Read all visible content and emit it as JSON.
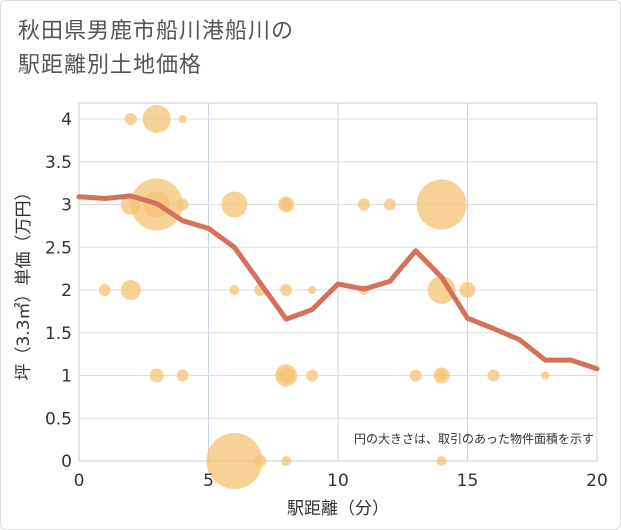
{
  "title_lines": [
    "秋田県男鹿市船川港船川の",
    "駅距離別土地価格"
  ],
  "chart_data": {
    "type": "scatter",
    "title": "秋田県男鹿市船川港船川の駅距離別土地価格",
    "xlabel": "駅距離（分）",
    "ylabel": "坪（3.3㎡）単価（万円）",
    "xlim": [
      0,
      20
    ],
    "ylim": [
      0,
      4.2
    ],
    "x_ticks": [
      0,
      5,
      10,
      15,
      20
    ],
    "x_tick_labels": [
      "0",
      "5",
      "10",
      "15",
      "20"
    ],
    "y_ticks": [
      0,
      0.5,
      1,
      1.5,
      2,
      2.5,
      3,
      3.5,
      4
    ],
    "y_tick_labels": [
      "0",
      "0.5",
      "1",
      "1.5",
      "2",
      "2.5",
      "3",
      "3.5",
      "4"
    ],
    "grid": true,
    "note": "円の大きさは、取引のあった物件面積を示す",
    "bubble_color": "#f5c477",
    "line_color": "#d4705c",
    "bubbles": [
      {
        "x": 2,
        "y": 4,
        "size": 6
      },
      {
        "x": 3,
        "y": 4,
        "size": 14
      },
      {
        "x": 4,
        "y": 4,
        "size": 4
      },
      {
        "x": 2,
        "y": 3,
        "size": 10
      },
      {
        "x": 3,
        "y": 3,
        "size": 26
      },
      {
        "x": 3,
        "y": 3,
        "size": 13
      },
      {
        "x": 4,
        "y": 3,
        "size": 6
      },
      {
        "x": 6,
        "y": 3,
        "size": 13
      },
      {
        "x": 8,
        "y": 3,
        "size": 8
      },
      {
        "x": 8,
        "y": 3,
        "size": 6
      },
      {
        "x": 11,
        "y": 3,
        "size": 6
      },
      {
        "x": 12,
        "y": 3,
        "size": 6
      },
      {
        "x": 14,
        "y": 3,
        "size": 25
      },
      {
        "x": 1,
        "y": 2,
        "size": 6
      },
      {
        "x": 2,
        "y": 2,
        "size": 10
      },
      {
        "x": 6,
        "y": 2,
        "size": 5
      },
      {
        "x": 7,
        "y": 2,
        "size": 6
      },
      {
        "x": 8,
        "y": 2,
        "size": 6
      },
      {
        "x": 9,
        "y": 2,
        "size": 4
      },
      {
        "x": 11,
        "y": 2,
        "size": 5
      },
      {
        "x": 14,
        "y": 2,
        "size": 14
      },
      {
        "x": 15,
        "y": 2,
        "size": 8
      },
      {
        "x": 3,
        "y": 1,
        "size": 7
      },
      {
        "x": 4,
        "y": 1,
        "size": 6
      },
      {
        "x": 8,
        "y": 1,
        "size": 11
      },
      {
        "x": 8,
        "y": 1,
        "size": 8
      },
      {
        "x": 9,
        "y": 1,
        "size": 6
      },
      {
        "x": 13,
        "y": 1,
        "size": 6
      },
      {
        "x": 14,
        "y": 1,
        "size": 8
      },
      {
        "x": 14,
        "y": 1,
        "size": 5
      },
      {
        "x": 16,
        "y": 1,
        "size": 6
      },
      {
        "x": 18,
        "y": 1,
        "size": 4
      },
      {
        "x": 6,
        "y": 0,
        "size": 28
      },
      {
        "x": 7,
        "y": 0,
        "size": 6
      },
      {
        "x": 8,
        "y": 0,
        "size": 5
      },
      {
        "x": 14,
        "y": 0,
        "size": 5
      }
    ],
    "trend": {
      "x": [
        0,
        1,
        2,
        3,
        4,
        5,
        6,
        7,
        8,
        9,
        10,
        11,
        12,
        13,
        14,
        15,
        16,
        17,
        18,
        19,
        20
      ],
      "y": [
        3.09,
        3.07,
        3.1,
        3.01,
        2.81,
        2.72,
        2.5,
        2.08,
        1.66,
        1.77,
        2.07,
        2.01,
        2.1,
        2.46,
        2.15,
        1.67,
        1.55,
        1.42,
        1.18,
        1.18,
        1.08
      ]
    }
  }
}
